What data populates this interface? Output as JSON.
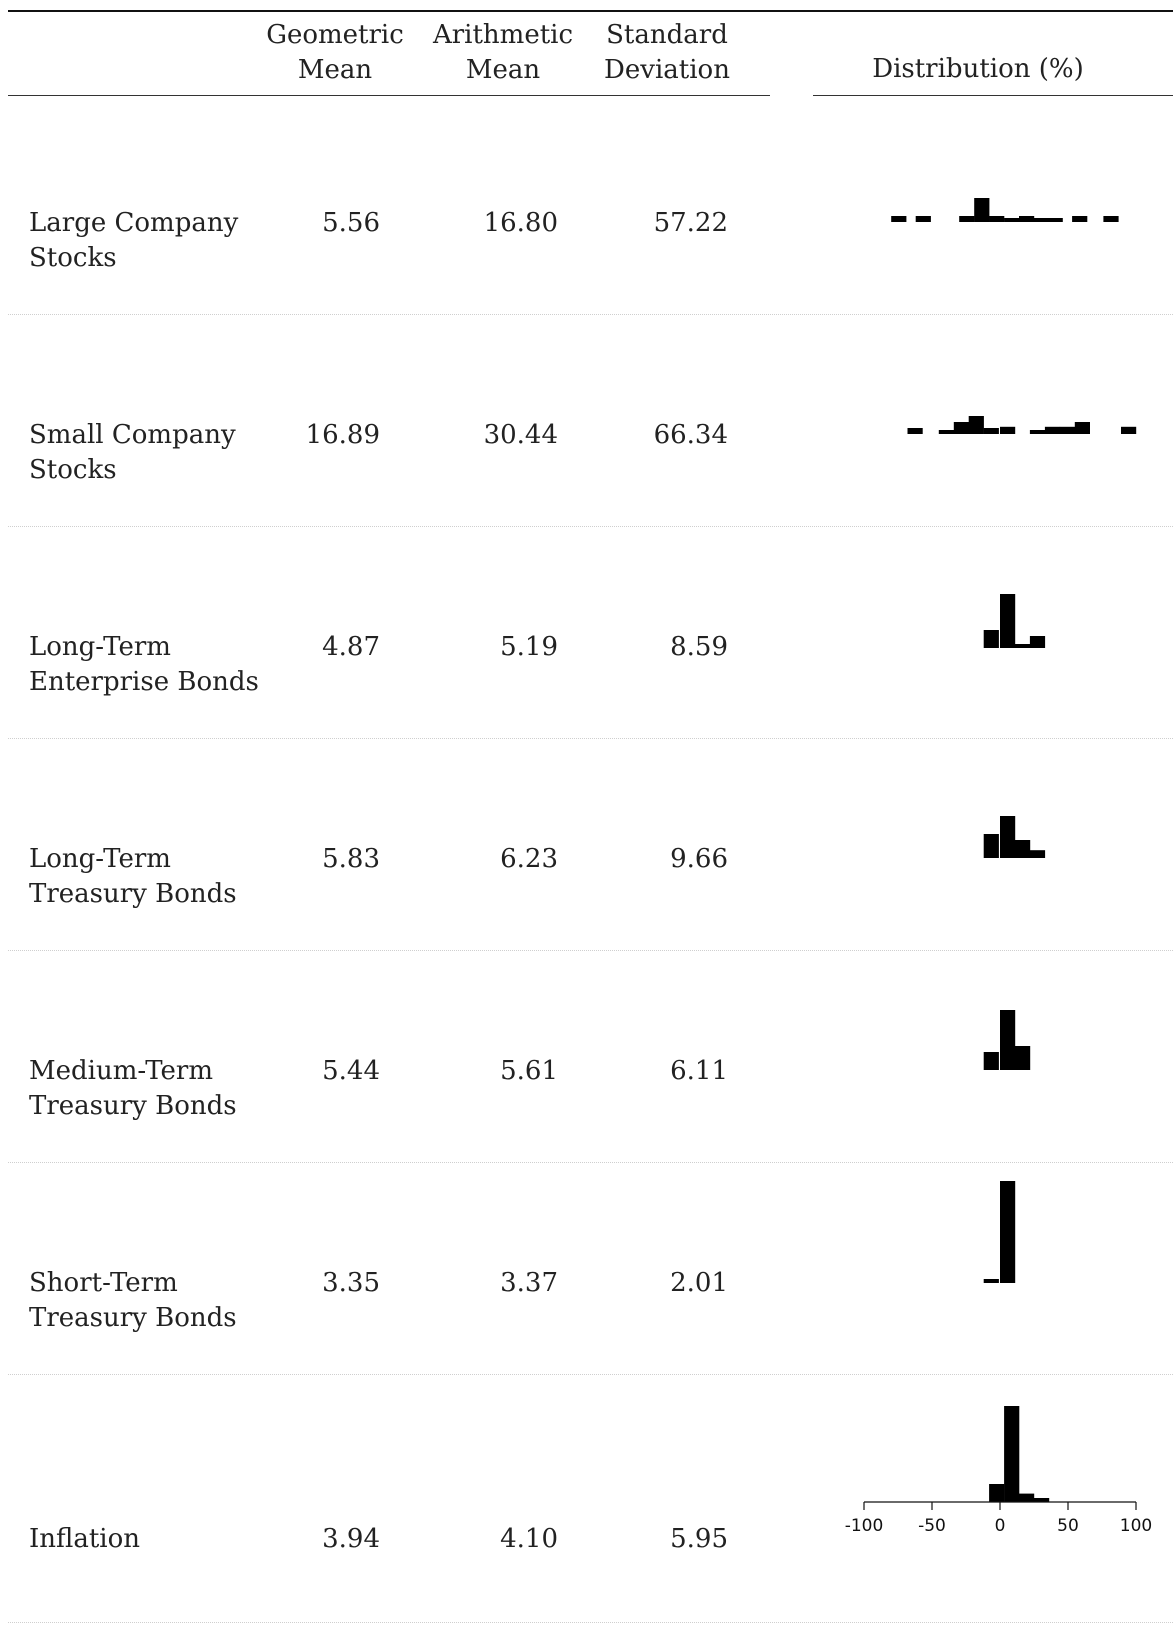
{
  "table": {
    "headers": {
      "geo": [
        "Geometric",
        "Mean"
      ],
      "arith": [
        "Arithmetic",
        "Mean"
      ],
      "std": [
        "Standard",
        "Deviation"
      ],
      "dist": "Distribution (%)"
    },
    "rows": [
      {
        "label": [
          "Large Company",
          "Stocks"
        ],
        "geo": "5.56",
        "arith": "16.80",
        "std": "57.22"
      },
      {
        "label": [
          "Small Company",
          "Stocks"
        ],
        "geo": "16.89",
        "arith": "30.44",
        "std": "66.34"
      },
      {
        "label": [
          "Long-Term",
          "Enterprise Bonds"
        ],
        "geo": "4.87",
        "arith": "5.19",
        "std": "8.59"
      },
      {
        "label": [
          "Long-Term",
          "Treasury Bonds"
        ],
        "geo": "5.83",
        "arith": "6.23",
        "std": "9.66"
      },
      {
        "label": [
          "Medium-Term",
          "Treasury Bonds"
        ],
        "geo": "5.44",
        "arith": "5.61",
        "std": "6.11"
      },
      {
        "label": [
          "Short-Term",
          "Treasury Bonds"
        ],
        "geo": "3.35",
        "arith": "3.37",
        "std": "2.01"
      },
      {
        "label": [
          "Inflation"
        ],
        "geo": "3.94",
        "arith": "4.10",
        "std": "5.95"
      }
    ]
  },
  "chart_data": {
    "type": "bar",
    "xlabel": "Distribution (%)",
    "xlim": [
      -100,
      100
    ],
    "xticks": [
      "-100",
      "-50",
      "0",
      "50",
      "100"
    ],
    "bin_width": 11.2,
    "bar_color": "#000000",
    "series": [
      {
        "bins": [
          [
            -80,
            1
          ],
          [
            -62,
            1
          ],
          [
            -30,
            1
          ],
          [
            -19,
            4
          ],
          [
            -8,
            1
          ],
          [
            3,
            0.4
          ],
          [
            14,
            1
          ],
          [
            25,
            0.4
          ],
          [
            35,
            0.4
          ],
          [
            53,
            1
          ],
          [
            76,
            1
          ]
        ]
      },
      {
        "bins": [
          [
            -68,
            1
          ],
          [
            -45,
            0.6
          ],
          [
            -34,
            2
          ],
          [
            -23,
            3
          ],
          [
            -12,
            1
          ],
          [
            0,
            1.2
          ],
          [
            22,
            0.6
          ],
          [
            33,
            1.2
          ],
          [
            44,
            1.2
          ],
          [
            55,
            2
          ],
          [
            89,
            1.2
          ]
        ]
      },
      {
        "bins": [
          [
            -12,
            3
          ],
          [
            0,
            9
          ],
          [
            11,
            0.6
          ],
          [
            22,
            2
          ]
        ]
      },
      {
        "bins": [
          [
            -12,
            4
          ],
          [
            0,
            7
          ],
          [
            11,
            3
          ],
          [
            22,
            1.3
          ]
        ]
      },
      {
        "bins": [
          [
            -12,
            3
          ],
          [
            0,
            10
          ],
          [
            11,
            4
          ]
        ]
      },
      {
        "bins": [
          [
            -12,
            0.5
          ],
          [
            0,
            17
          ]
        ]
      },
      {
        "bins": [
          [
            -8,
            3
          ],
          [
            3,
            16
          ],
          [
            14,
            1.4
          ],
          [
            25,
            0.6
          ]
        ]
      }
    ]
  }
}
